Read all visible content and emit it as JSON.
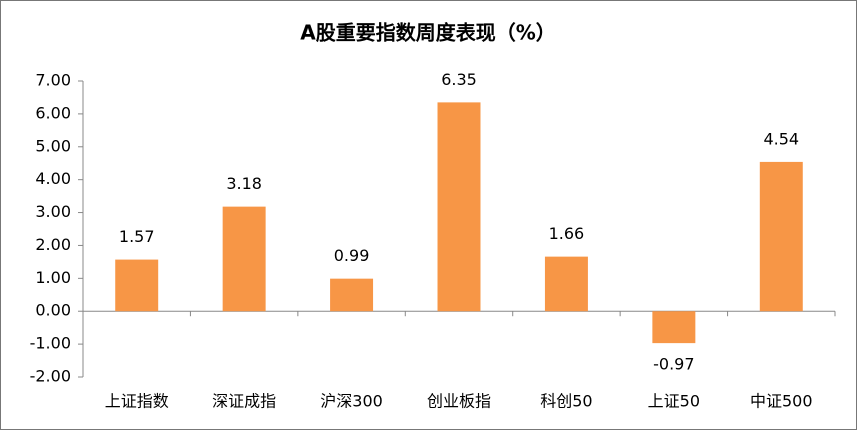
{
  "chart_data": {
    "type": "bar",
    "title": "A股重要指数周度表现（%）",
    "categories": [
      "上证指数",
      "深证成指",
      "沪深300",
      "创业板指",
      "科创50",
      "上证50",
      "中证500"
    ],
    "values": [
      1.57,
      3.18,
      0.99,
      6.35,
      1.66,
      -0.97,
      4.54
    ],
    "value_labels": [
      "1.57",
      "3.18",
      "0.99",
      "6.35",
      "1.66",
      "-0.97",
      "4.54"
    ],
    "color": "#f79646",
    "ylim": [
      -2,
      7
    ],
    "yticks": [
      {
        "value": -2,
        "label": "-2.00"
      },
      {
        "value": -1,
        "label": "-1.00"
      },
      {
        "value": 0,
        "label": "0.00"
      },
      {
        "value": 1,
        "label": "1.00"
      },
      {
        "value": 2,
        "label": "2.00"
      },
      {
        "value": 3,
        "label": "3.00"
      },
      {
        "value": 4,
        "label": "4.00"
      },
      {
        "value": 5,
        "label": "5.00"
      },
      {
        "value": 6,
        "label": "6.00"
      },
      {
        "value": 7,
        "label": "7.00"
      }
    ],
    "grid": false
  }
}
